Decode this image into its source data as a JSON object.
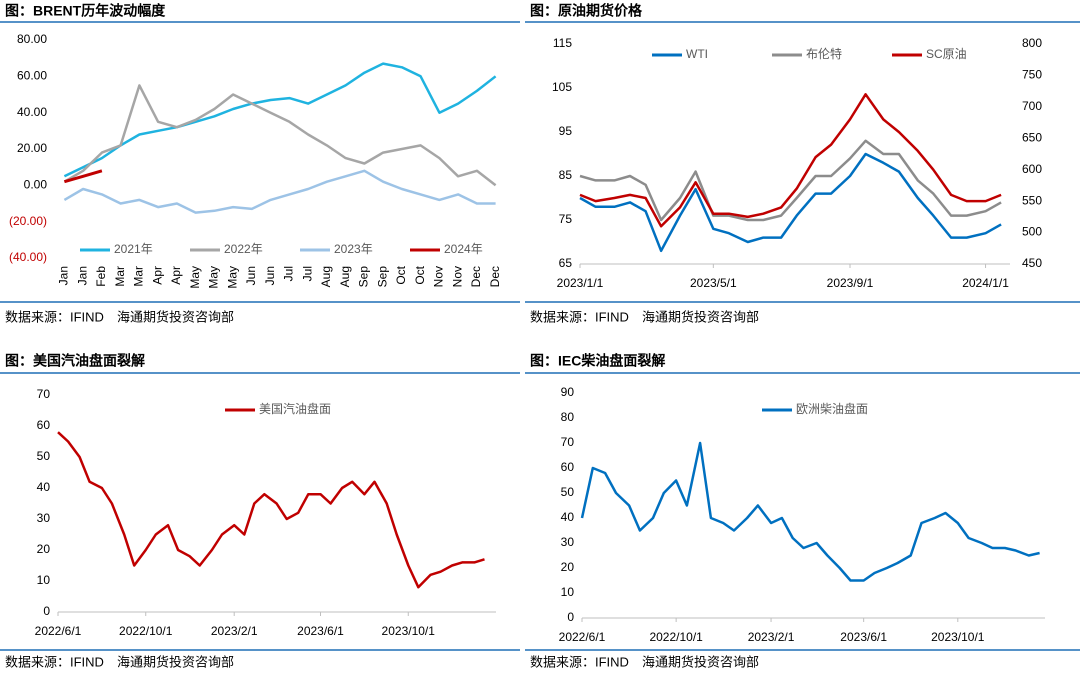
{
  "chart_data": [
    {
      "type": "line",
      "title": "图：BRENT历年波动幅度",
      "source": "数据来源：IFIND　海通期货投资咨询部",
      "categories": [
        "Jan",
        "Jan",
        "Feb",
        "Mar",
        "Mar",
        "Apr",
        "Apr",
        "May",
        "May",
        "May",
        "Jun",
        "Jun",
        "Jul",
        "Jul",
        "Aug",
        "Aug",
        "Sep",
        "Sep",
        "Oct",
        "Oct",
        "Nov",
        "Nov",
        "Dec",
        "Dec"
      ],
      "series": [
        {
          "name": "2021年",
          "color": "#1fb3e0",
          "values": [
            5,
            10,
            15,
            22,
            28,
            30,
            32,
            35,
            38,
            42,
            45,
            47,
            48,
            45,
            50,
            55,
            62,
            67,
            65,
            60,
            40,
            45,
            52,
            60
          ]
        },
        {
          "name": "2022年",
          "color": "#a6a6a6",
          "values": [
            2,
            8,
            18,
            22,
            55,
            35,
            32,
            36,
            42,
            50,
            45,
            40,
            35,
            28,
            22,
            15,
            12,
            18,
            20,
            22,
            15,
            5,
            8,
            0
          ]
        },
        {
          "name": "2023年",
          "color": "#9dc3e6",
          "values": [
            -8,
            -2,
            -5,
            -10,
            -8,
            -12,
            -10,
            -15,
            -14,
            -12,
            -13,
            -8,
            -5,
            -2,
            2,
            5,
            8,
            2,
            -2,
            -5,
            -8,
            -5,
            -10,
            -10
          ]
        },
        {
          "name": "2024年",
          "color": "#c00000",
          "values": [
            2,
            5,
            8,
            null,
            null,
            null,
            null,
            null,
            null,
            null,
            null,
            null,
            null,
            null,
            null,
            null,
            null,
            null,
            null,
            null,
            null,
            null,
            null,
            null
          ]
        }
      ],
      "ylim": [
        -40,
        80
      ],
      "yticks": [
        {
          "value": 80,
          "label": "80.00"
        },
        {
          "value": 60,
          "label": "60.00"
        },
        {
          "value": 40,
          "label": "40.00"
        },
        {
          "value": 20,
          "label": "20.00"
        },
        {
          "value": 0,
          "label": "0.00"
        },
        {
          "value": -20,
          "label": "(20.00)"
        },
        {
          "value": -40,
          "label": "(40.00)"
        }
      ],
      "negative_color": "#c00000",
      "legend": "bottom"
    },
    {
      "type": "line",
      "title": "图：原油期货价格",
      "source": "数据来源：IFIND　海通期货投资咨询部",
      "x": [
        "2023/1/1",
        "2023/1/15",
        "2023/2/1",
        "2023/2/15",
        "2023/3/1",
        "2023/3/15",
        "2023/4/1",
        "2023/4/15",
        "2023/5/1",
        "2023/5/15",
        "2023/6/1",
        "2023/6/15",
        "2023/7/1",
        "2023/7/15",
        "2023/8/1",
        "2023/8/15",
        "2023/9/1",
        "2023/9/15",
        "2023/10/1",
        "2023/10/15",
        "2023/11/1",
        "2023/11/15",
        "2023/12/1",
        "2023/12/15",
        "2024/1/1",
        "2024/1/15"
      ],
      "series": [
        {
          "name": "WTI",
          "color": "#0070c0",
          "values": [
            80,
            78,
            78,
            79,
            77,
            68,
            76,
            82,
            73,
            72,
            70,
            71,
            71,
            76,
            81,
            81,
            85,
            90,
            88,
            86,
            80,
            76,
            71,
            71,
            72,
            74
          ]
        },
        {
          "name": "布伦特",
          "color": "#8c8c8c",
          "values": [
            85,
            84,
            84,
            85,
            83,
            75,
            80,
            86,
            76,
            76,
            75,
            75,
            76,
            80,
            85,
            85,
            89,
            93,
            90,
            90,
            84,
            81,
            76,
            76,
            77,
            79
          ]
        },
        {
          "name": "SC原油",
          "color": "#c00000",
          "axis": "y2",
          "values": [
            560,
            550,
            555,
            560,
            555,
            510,
            540,
            580,
            530,
            530,
            525,
            530,
            540,
            570,
            620,
            640,
            680,
            720,
            680,
            660,
            630,
            600,
            560,
            550,
            550,
            560
          ]
        }
      ],
      "xlim": [
        "2023/1/1",
        "2024/1/23"
      ],
      "xticks": [
        "2023/1/1",
        "2023/5/1",
        "2023/9/1",
        "2024/1/1"
      ],
      "ylim": [
        65,
        115
      ],
      "yticks": [
        65,
        75,
        85,
        95,
        105,
        115
      ],
      "y2lim": [
        450,
        800
      ],
      "y2ticks": [
        450,
        500,
        550,
        600,
        650,
        700,
        750,
        800
      ],
      "legend": "top"
    },
    {
      "type": "line",
      "title": "图：美国汽油盘面裂解",
      "source": "数据来源：IFIND　海通期货投资咨询部",
      "x": [
        "2022/6/1",
        "2022/6/15",
        "2022/7/1",
        "2022/7/15",
        "2022/8/1",
        "2022/8/15",
        "2022/9/1",
        "2022/9/15",
        "2022/10/1",
        "2022/10/15",
        "2022/11/1",
        "2022/11/15",
        "2022/12/1",
        "2022/12/15",
        "2023/1/1",
        "2023/1/15",
        "2023/2/1",
        "2023/2/15",
        "2023/3/1",
        "2023/3/15",
        "2023/4/1",
        "2023/4/15",
        "2023/5/1",
        "2023/5/15",
        "2023/6/1",
        "2023/6/15",
        "2023/7/1",
        "2023/7/15",
        "2023/8/1",
        "2023/8/15",
        "2023/9/1",
        "2023/9/15",
        "2023/10/1",
        "2023/10/15",
        "2023/11/1",
        "2023/11/15",
        "2023/12/1",
        "2023/12/15",
        "2024/1/1",
        "2024/1/15"
      ],
      "series": [
        {
          "name": "美国汽油盘面",
          "color": "#c00000",
          "values": [
            58,
            55,
            50,
            42,
            40,
            35,
            25,
            15,
            20,
            25,
            28,
            20,
            18,
            15,
            20,
            25,
            28,
            25,
            35,
            38,
            35,
            30,
            32,
            38,
            38,
            35,
            40,
            42,
            38,
            42,
            35,
            25,
            15,
            8,
            12,
            13,
            15,
            16,
            16,
            17
          ]
        }
      ],
      "xlim": [
        "2022/6/1",
        "2024/1/31"
      ],
      "xticks": [
        "2022/6/1",
        "2022/10/1",
        "2023/2/1",
        "2023/6/1",
        "2023/10/1"
      ],
      "ylim": [
        0,
        70
      ],
      "yticks": [
        0,
        10,
        20,
        30,
        40,
        50,
        60,
        70
      ],
      "legend": "top"
    },
    {
      "type": "line",
      "title": "图：IEC柴油盘面裂解",
      "source": "数据来源：IFIND　海通期货投资咨询部",
      "x": [
        "2022/6/1",
        "2022/6/15",
        "2022/7/1",
        "2022/7/15",
        "2022/8/1",
        "2022/8/15",
        "2022/9/1",
        "2022/9/15",
        "2022/10/1",
        "2022/10/15",
        "2022/11/1",
        "2022/11/15",
        "2022/12/1",
        "2022/12/15",
        "2023/1/1",
        "2023/1/15",
        "2023/2/1",
        "2023/2/15",
        "2023/3/1",
        "2023/3/15",
        "2023/4/1",
        "2023/4/15",
        "2023/5/1",
        "2023/5/15",
        "2023/6/1",
        "2023/6/15",
        "2023/7/1",
        "2023/7/15",
        "2023/8/1",
        "2023/8/15",
        "2023/9/1",
        "2023/9/15",
        "2023/10/1",
        "2023/10/15",
        "2023/11/1",
        "2023/11/15",
        "2023/12/1",
        "2023/12/15",
        "2024/1/1",
        "2024/1/15"
      ],
      "series": [
        {
          "name": "欧洲柴油盘面",
          "color": "#0070c0",
          "values": [
            40,
            60,
            58,
            50,
            45,
            35,
            40,
            50,
            55,
            45,
            70,
            40,
            38,
            35,
            40,
            45,
            38,
            40,
            32,
            28,
            30,
            25,
            20,
            15,
            15,
            18,
            20,
            22,
            25,
            38,
            40,
            42,
            38,
            32,
            30,
            28,
            28,
            27,
            25,
            26
          ]
        }
      ],
      "xlim": [
        "2022/6/1",
        "2024/1/22"
      ],
      "xticks": [
        "2022/6/1",
        "2022/10/1",
        "2023/2/1",
        "2023/6/1",
        "2023/10/1"
      ],
      "ylim": [
        0,
        90
      ],
      "yticks": [
        0,
        10,
        20,
        30,
        40,
        50,
        60,
        70,
        80,
        90
      ],
      "legend": "top"
    }
  ]
}
